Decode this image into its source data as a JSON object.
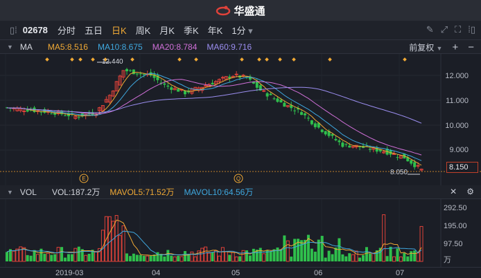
{
  "app": {
    "brand": "华盛通"
  },
  "toolbar": {
    "code": "02678",
    "tabs": [
      "分时",
      "五日",
      "日K",
      "周K",
      "月K",
      "季K",
      "年K"
    ],
    "active_tab": "日K",
    "interval": "1分",
    "interval_arrow": "▾"
  },
  "kline_header": {
    "indicator": "MA",
    "ma5": "MA5:8.516",
    "ma10": "MA10:8.675",
    "ma20": "MA20:8.784",
    "ma60": "MA60:9.716",
    "adjust": "前复权",
    "colors": {
      "ma5": "#f0a935",
      "ma10": "#3fa9e0",
      "ma20": "#d070d8",
      "ma60": "#9b8ef0"
    }
  },
  "vol_header": {
    "indicator": "VOL",
    "vol": "VOL:187.2万",
    "mavol5": "MAVOL5:71.52万",
    "mavol10": "MAVOL10:64.56万",
    "colors": {
      "vol": "#d4d7de",
      "mavol5": "#f0a935",
      "mavol10": "#3fa9e0"
    }
  },
  "price_axis": [
    "12.000",
    "11.000",
    "10.000",
    "9.000"
  ],
  "last_price": "8.150",
  "high_label": "12.440",
  "low_label": "8.050",
  "event_markers": [
    "E",
    "Q"
  ],
  "vol_axis": [
    "292.50",
    "195.00",
    "97.50",
    "万"
  ],
  "x_axis": [
    "2019-03",
    "04",
    "05",
    "06",
    "07"
  ],
  "colors": {
    "up": "#e0423a",
    "down": "#2fbf4c",
    "bg": "#1b1e26"
  }
}
